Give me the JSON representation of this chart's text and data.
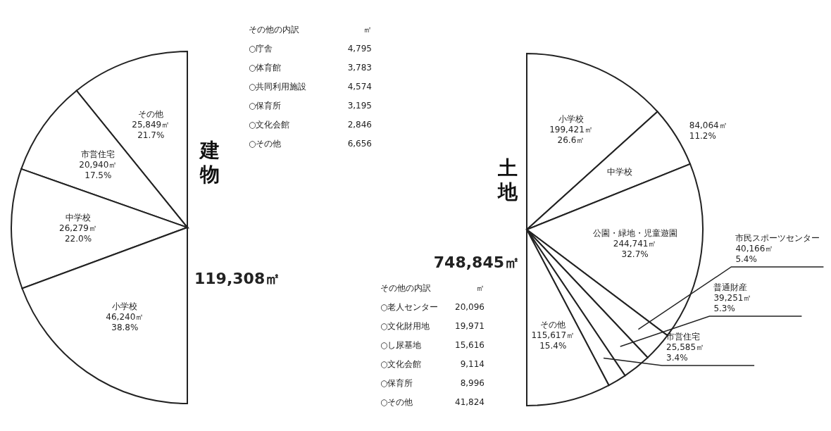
{
  "chart_data": [
    {
      "type": "pie",
      "title": "建物",
      "subtitle": "119,308㎡",
      "categories": [
        "その他",
        "市営住宅",
        "中学校",
        "小学校"
      ],
      "values": [
        25849,
        20940,
        26279,
        46240
      ],
      "colors": [
        "#ffffff",
        "#ffffff",
        "#ffffff",
        "#ffffff"
      ],
      "value_labels": [
        "25,849㎡\n21.7%",
        "20,940㎡\n17.5%",
        "26,279㎡\n22.0%",
        "46,240㎡\n38.8%"
      ],
      "annotations": [
        "その他の内訳 ㎡",
        "○庁舎 4,795",
        "○体育館 3,783",
        "○共同利用施設 4,574",
        "○保育所 3,195",
        "○文化会館 2,846",
        "○その他 6,656"
      ]
    },
    {
      "type": "pie",
      "title": "土地",
      "subtitle": "748,845㎡",
      "categories": [
        "小学校",
        "中学校",
        "公園・緑地・児童遊園",
        "市民スポーツセンター",
        "普通財産",
        "市営住宅",
        "その他"
      ],
      "values": [
        199421,
        84064,
        244741,
        40166,
        39251,
        25585,
        115617
      ],
      "colors": [
        "#ffffff",
        "#ffffff",
        "#ffffff",
        "#ffffff",
        "#ffffff",
        "#ffffff",
        "#ffffff"
      ],
      "value_labels": [
        "199,421㎡\n26.6㎡",
        "84,064㎡\n11.2%",
        "244,741㎡\n32.7%",
        "40,166㎡\n5.4%",
        "39,251㎡\n5.3%",
        "25,585㎡\n3.4%",
        "115,617㎡\n15.4%"
      ],
      "annotations": [
        "その他の内訳 ㎡",
        "○老人センター 20,096",
        "○文化財用地 19,971",
        "○し尿基地 15,616",
        "○文化会館 9,114",
        "○保育所 8,996",
        "○その他 41,824"
      ]
    }
  ]
}
